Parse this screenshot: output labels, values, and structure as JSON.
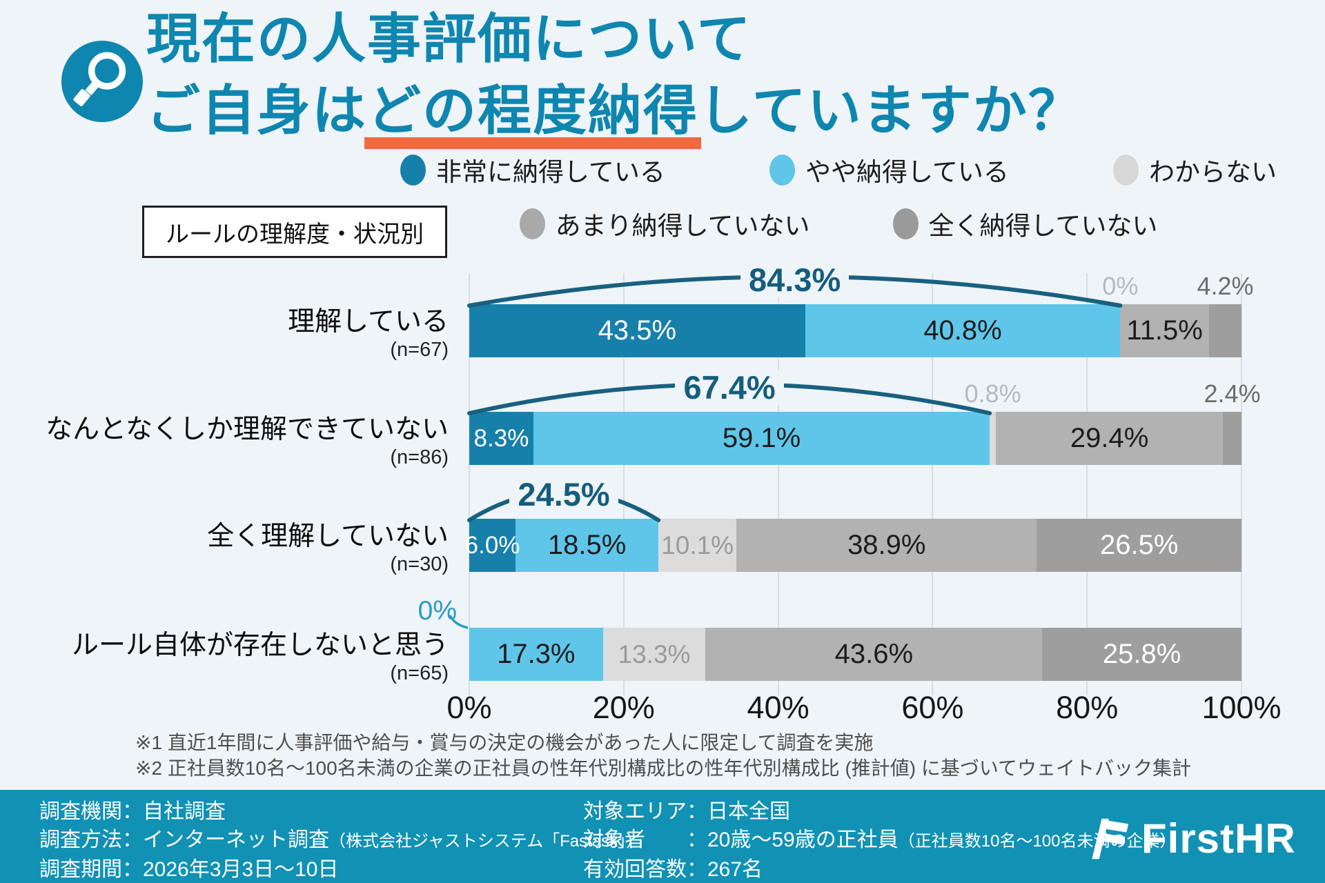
{
  "header": {
    "title_line1": "現在の人事評価について",
    "title_line2_pre": "ご自身は",
    "title_line2_underlined": "どの程度納得",
    "title_line2_post": "していますか？",
    "title_color": "#0e86b0",
    "underline_color": "#f0693f",
    "badge_icon": "magnifier-icon"
  },
  "category_box": {
    "label": "ルールの理解度・状況別"
  },
  "legend": {
    "rows": [
      [
        {
          "label": "非常に納得している",
          "color": "#1780aa"
        },
        {
          "label": "やや納得している",
          "color": "#5fc6e9"
        },
        {
          "label": "わからない",
          "color": "#d7d7d7"
        }
      ],
      [
        {
          "label": "あまり納得していない",
          "color": "#a9a9a9"
        },
        {
          "label": "全く納得していない",
          "color": "#9a9a9a"
        }
      ]
    ]
  },
  "chart_data": {
    "type": "bar",
    "stacked": true,
    "orientation": "horizontal",
    "title": "ルールの理解度・状況別",
    "series": [
      "非常に納得している",
      "やや納得している",
      "わからない",
      "あまり納得していない",
      "全く納得していない"
    ],
    "colors": [
      "#1780aa",
      "#5fc6e9",
      "#dcdcdc",
      "#b2b2b2",
      "#9e9e9e"
    ],
    "bracket_color": "#19607f",
    "callout_color": "#2b9ac6",
    "x_axis": {
      "ticks": [
        "0%",
        "20%",
        "40%",
        "60%",
        "80%",
        "100%"
      ],
      "range": [
        0,
        100
      ],
      "grid": true
    },
    "rows": [
      {
        "category": "理解している",
        "n": "(n=67)",
        "values": [
          43.5,
          40.8,
          0,
          11.5,
          4.2
        ],
        "labels": [
          "43.5%",
          "40.8%",
          "0%",
          "11.5%",
          "4.2%"
        ],
        "label_styles": [
          "white",
          "black",
          "above-light",
          "black",
          "above-dark"
        ],
        "bracket": {
          "label": "84.3%",
          "span": 84.3
        }
      },
      {
        "category": "なんとなくしか理解できていない",
        "n": "(n=86)",
        "values": [
          8.3,
          59.1,
          0.8,
          29.4,
          2.4
        ],
        "labels": [
          "8.3%",
          "59.1%",
          "0.8%",
          "29.4%",
          "2.4%"
        ],
        "label_styles": [
          "white-sm",
          "black",
          "above-light",
          "black",
          "above-dark"
        ],
        "bracket": {
          "label": "67.4%",
          "span": 67.4
        }
      },
      {
        "category": "全く理解していない",
        "n": "(n=30)",
        "values": [
          6.0,
          18.5,
          10.1,
          38.9,
          26.5
        ],
        "labels": [
          "6.0%",
          "18.5%",
          "10.1%",
          "38.9%",
          "26.5%"
        ],
        "label_styles": [
          "white-sm",
          "black",
          "gray",
          "black",
          "white"
        ],
        "bracket": {
          "label": "24.5%",
          "span": 24.5
        }
      },
      {
        "category": "ルール自体が存在しないと思う",
        "n": "(n=65)",
        "values": [
          0,
          17.3,
          13.3,
          43.6,
          25.8
        ],
        "labels": [
          "0%",
          "17.3%",
          "13.3%",
          "43.6%",
          "25.8%"
        ],
        "label_styles": [
          "callout",
          "black",
          "gray",
          "black",
          "white"
        ],
        "zero_callout": "0%"
      }
    ]
  },
  "footnotes": [
    "※1 直近1年間に人事評価や給与・賞与の決定の機会があった人に限定して調査を実施",
    "※2 正社員数10名〜100名未満の企業の正社員の性年代別構成比の性年代別構成比 (推計値) に基づいてウェイトバック集計"
  ],
  "footer": {
    "bg": "#1191b4",
    "left": [
      {
        "label": "調査機関",
        "value": "自社調査",
        "value_small": ""
      },
      {
        "label": "調査方法",
        "value": "インターネット調査",
        "value_small": "（株式会社ジャストシステム「Fastask」）"
      },
      {
        "label": "調査期間",
        "value": "2026年3月3日〜10日",
        "value_small": ""
      }
    ],
    "right": [
      {
        "label": "対象エリア",
        "value": "日本全国",
        "value_small": ""
      },
      {
        "label": "対象者　　",
        "value": "20歳〜59歳の正社員",
        "value_small": "（正社員数10名〜100名未満の企業）"
      },
      {
        "label": "有効回答数",
        "value": "267名",
        "value_small": ""
      }
    ],
    "logo_text": "FirstHR"
  }
}
